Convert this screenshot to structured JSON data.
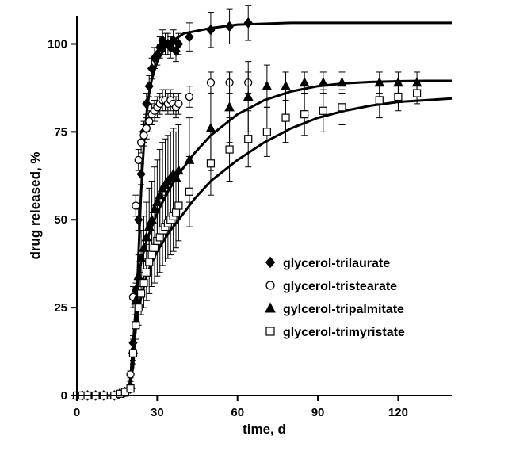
{
  "chart_data": {
    "type": "scatter",
    "title": "",
    "xlabel": "time, d",
    "ylabel": "drug released, %",
    "xlim": [
      0,
      140
    ],
    "ylim": [
      0,
      108
    ],
    "xticks": [
      0,
      30,
      60,
      90,
      120
    ],
    "yticks": [
      0,
      25,
      50,
      75,
      100
    ],
    "x_tick_labels": [
      "0",
      "30",
      "60",
      "90",
      "120"
    ],
    "y_tick_labels": [
      "0",
      "25",
      "50",
      "75",
      "100"
    ],
    "grid": false,
    "legend_position": "lower-right",
    "series": [
      {
        "name": "glycerol-trilaurate",
        "marker": "diamond-filled",
        "x": [
          0,
          2,
          4,
          7,
          10,
          14,
          16,
          18,
          20,
          21,
          22,
          23,
          24,
          25,
          26,
          27,
          28,
          29,
          30,
          31,
          32,
          33,
          34,
          35,
          36,
          37,
          38,
          42,
          50,
          57,
          64
        ],
        "y": [
          0,
          0,
          0,
          0,
          0,
          0,
          0.5,
          1,
          2,
          15,
          30,
          50,
          63,
          75,
          83,
          88,
          93,
          96,
          97,
          99,
          101,
          100,
          100,
          99,
          101,
          98,
          100,
          102,
          104,
          105,
          106
        ],
        "err": [
          0,
          0,
          0,
          0,
          0,
          0,
          0,
          0,
          0.5,
          2,
          2,
          3,
          3,
          3,
          3,
          3,
          3,
          3,
          3,
          3,
          3,
          3,
          3,
          3,
          3,
          3,
          3,
          4,
          5,
          5,
          5
        ],
        "fit": {
          "x": [
            0,
            19,
            21,
            22,
            23,
            24,
            25,
            26,
            27,
            28,
            30,
            33,
            36,
            40,
            50,
            60,
            80,
            100,
            140
          ],
          "y": [
            0,
            0,
            8,
            20,
            40,
            58,
            71,
            80,
            86,
            90,
            95,
            99,
            101,
            103,
            104.5,
            105.5,
            106,
            106,
            106
          ]
        }
      },
      {
        "name": "glycerol-tristearate",
        "marker": "circle-open",
        "x": [
          0,
          2,
          4,
          7,
          10,
          14,
          16,
          18,
          20,
          21,
          22,
          23,
          24,
          25,
          26,
          27,
          28,
          29,
          30,
          31,
          32,
          33,
          34,
          35,
          36,
          37,
          38,
          42,
          50,
          57,
          64
        ],
        "y": [
          0,
          0,
          0,
          0,
          0,
          0,
          0.5,
          1,
          6,
          28,
          54,
          67,
          72,
          74,
          76,
          78,
          80,
          81,
          82,
          83,
          84,
          84,
          83,
          84,
          83,
          82,
          83,
          85,
          89,
          89,
          89
        ],
        "err": [
          0,
          0,
          0,
          0,
          0,
          0,
          0,
          0,
          1,
          3,
          3,
          3,
          3,
          3,
          3,
          3,
          3,
          3,
          3,
          3,
          3,
          3,
          3,
          3,
          3,
          3,
          3,
          3,
          3,
          3,
          3
        ]
      },
      {
        "name": "gylcerol-tripalmitate",
        "marker": "triangle-filled",
        "x": [
          0,
          2,
          4,
          7,
          10,
          14,
          16,
          18,
          20,
          21,
          22,
          23,
          24,
          25,
          26,
          27,
          28,
          29,
          30,
          31,
          32,
          33,
          34,
          35,
          36,
          37,
          38,
          42,
          50,
          57,
          64,
          71,
          78,
          85,
          92,
          99,
          113,
          120,
          127
        ],
        "y": [
          0,
          0,
          0,
          0,
          0,
          0,
          0.5,
          1,
          3,
          13,
          27,
          34,
          39,
          42,
          45,
          48,
          50,
          53,
          55,
          57,
          59,
          60,
          61,
          62,
          63,
          62,
          64,
          67,
          76,
          82,
          85,
          88,
          88,
          89,
          89,
          89,
          89,
          89,
          89
        ],
        "err": [
          0,
          0,
          0,
          0,
          0,
          0,
          0,
          0,
          1,
          3,
          4,
          6,
          8,
          9,
          10,
          11,
          11,
          12,
          12,
          13,
          13,
          13,
          13,
          13,
          13,
          13,
          13,
          12,
          12,
          10,
          10,
          6,
          4,
          3,
          3,
          3,
          3,
          3,
          3
        ],
        "fit": {
          "x": [
            0,
            19,
            20,
            21,
            22,
            23,
            24,
            25,
            26,
            28,
            30,
            34,
            38,
            44,
            50,
            60,
            70,
            80,
            90,
            100,
            110,
            120,
            130,
            140
          ],
          "y": [
            0,
            0,
            5,
            15,
            25,
            33,
            38,
            41,
            44,
            48,
            52,
            58,
            63,
            69,
            74,
            80,
            84,
            86.5,
            88,
            88.8,
            89.2,
            89.4,
            89.5,
            89.5
          ]
        }
      },
      {
        "name": "glycerol-trimyristate",
        "marker": "square-open",
        "x": [
          0,
          2,
          4,
          7,
          10,
          14,
          16,
          18,
          20,
          21,
          22,
          23,
          24,
          25,
          26,
          27,
          28,
          29,
          30,
          31,
          32,
          33,
          34,
          35,
          36,
          37,
          38,
          42,
          50,
          57,
          64,
          71,
          78,
          85,
          92,
          99,
          113,
          120,
          127
        ],
        "y": [
          0,
          0,
          0,
          0,
          0,
          0,
          0.5,
          1,
          2,
          12,
          20,
          25,
          29,
          32,
          35,
          38,
          40,
          42,
          44,
          45,
          47,
          48,
          49,
          50,
          51,
          52,
          54,
          58,
          66,
          70,
          73,
          75,
          79,
          80,
          81,
          82,
          84,
          85,
          86
        ],
        "err": [
          0,
          0,
          0,
          0,
          0,
          0,
          0,
          0,
          1,
          3,
          4,
          5,
          6,
          7,
          8,
          9,
          9,
          10,
          10,
          10,
          10,
          10,
          10,
          10,
          10,
          10,
          10,
          10,
          9,
          9,
          8,
          7,
          7,
          6,
          6,
          5,
          5,
          4,
          3
        ],
        "fit": {
          "x": [
            0,
            19,
            20,
            21,
            22,
            23,
            24,
            25,
            26,
            28,
            30,
            34,
            38,
            44,
            50,
            60,
            70,
            80,
            90,
            100,
            110,
            120,
            130,
            140
          ],
          "y": [
            0,
            0,
            4,
            12,
            19,
            24,
            28,
            31,
            34,
            38,
            41,
            46,
            50,
            56,
            61,
            67,
            72,
            76,
            79,
            81,
            82.5,
            83.5,
            84,
            84.5
          ]
        }
      }
    ]
  }
}
